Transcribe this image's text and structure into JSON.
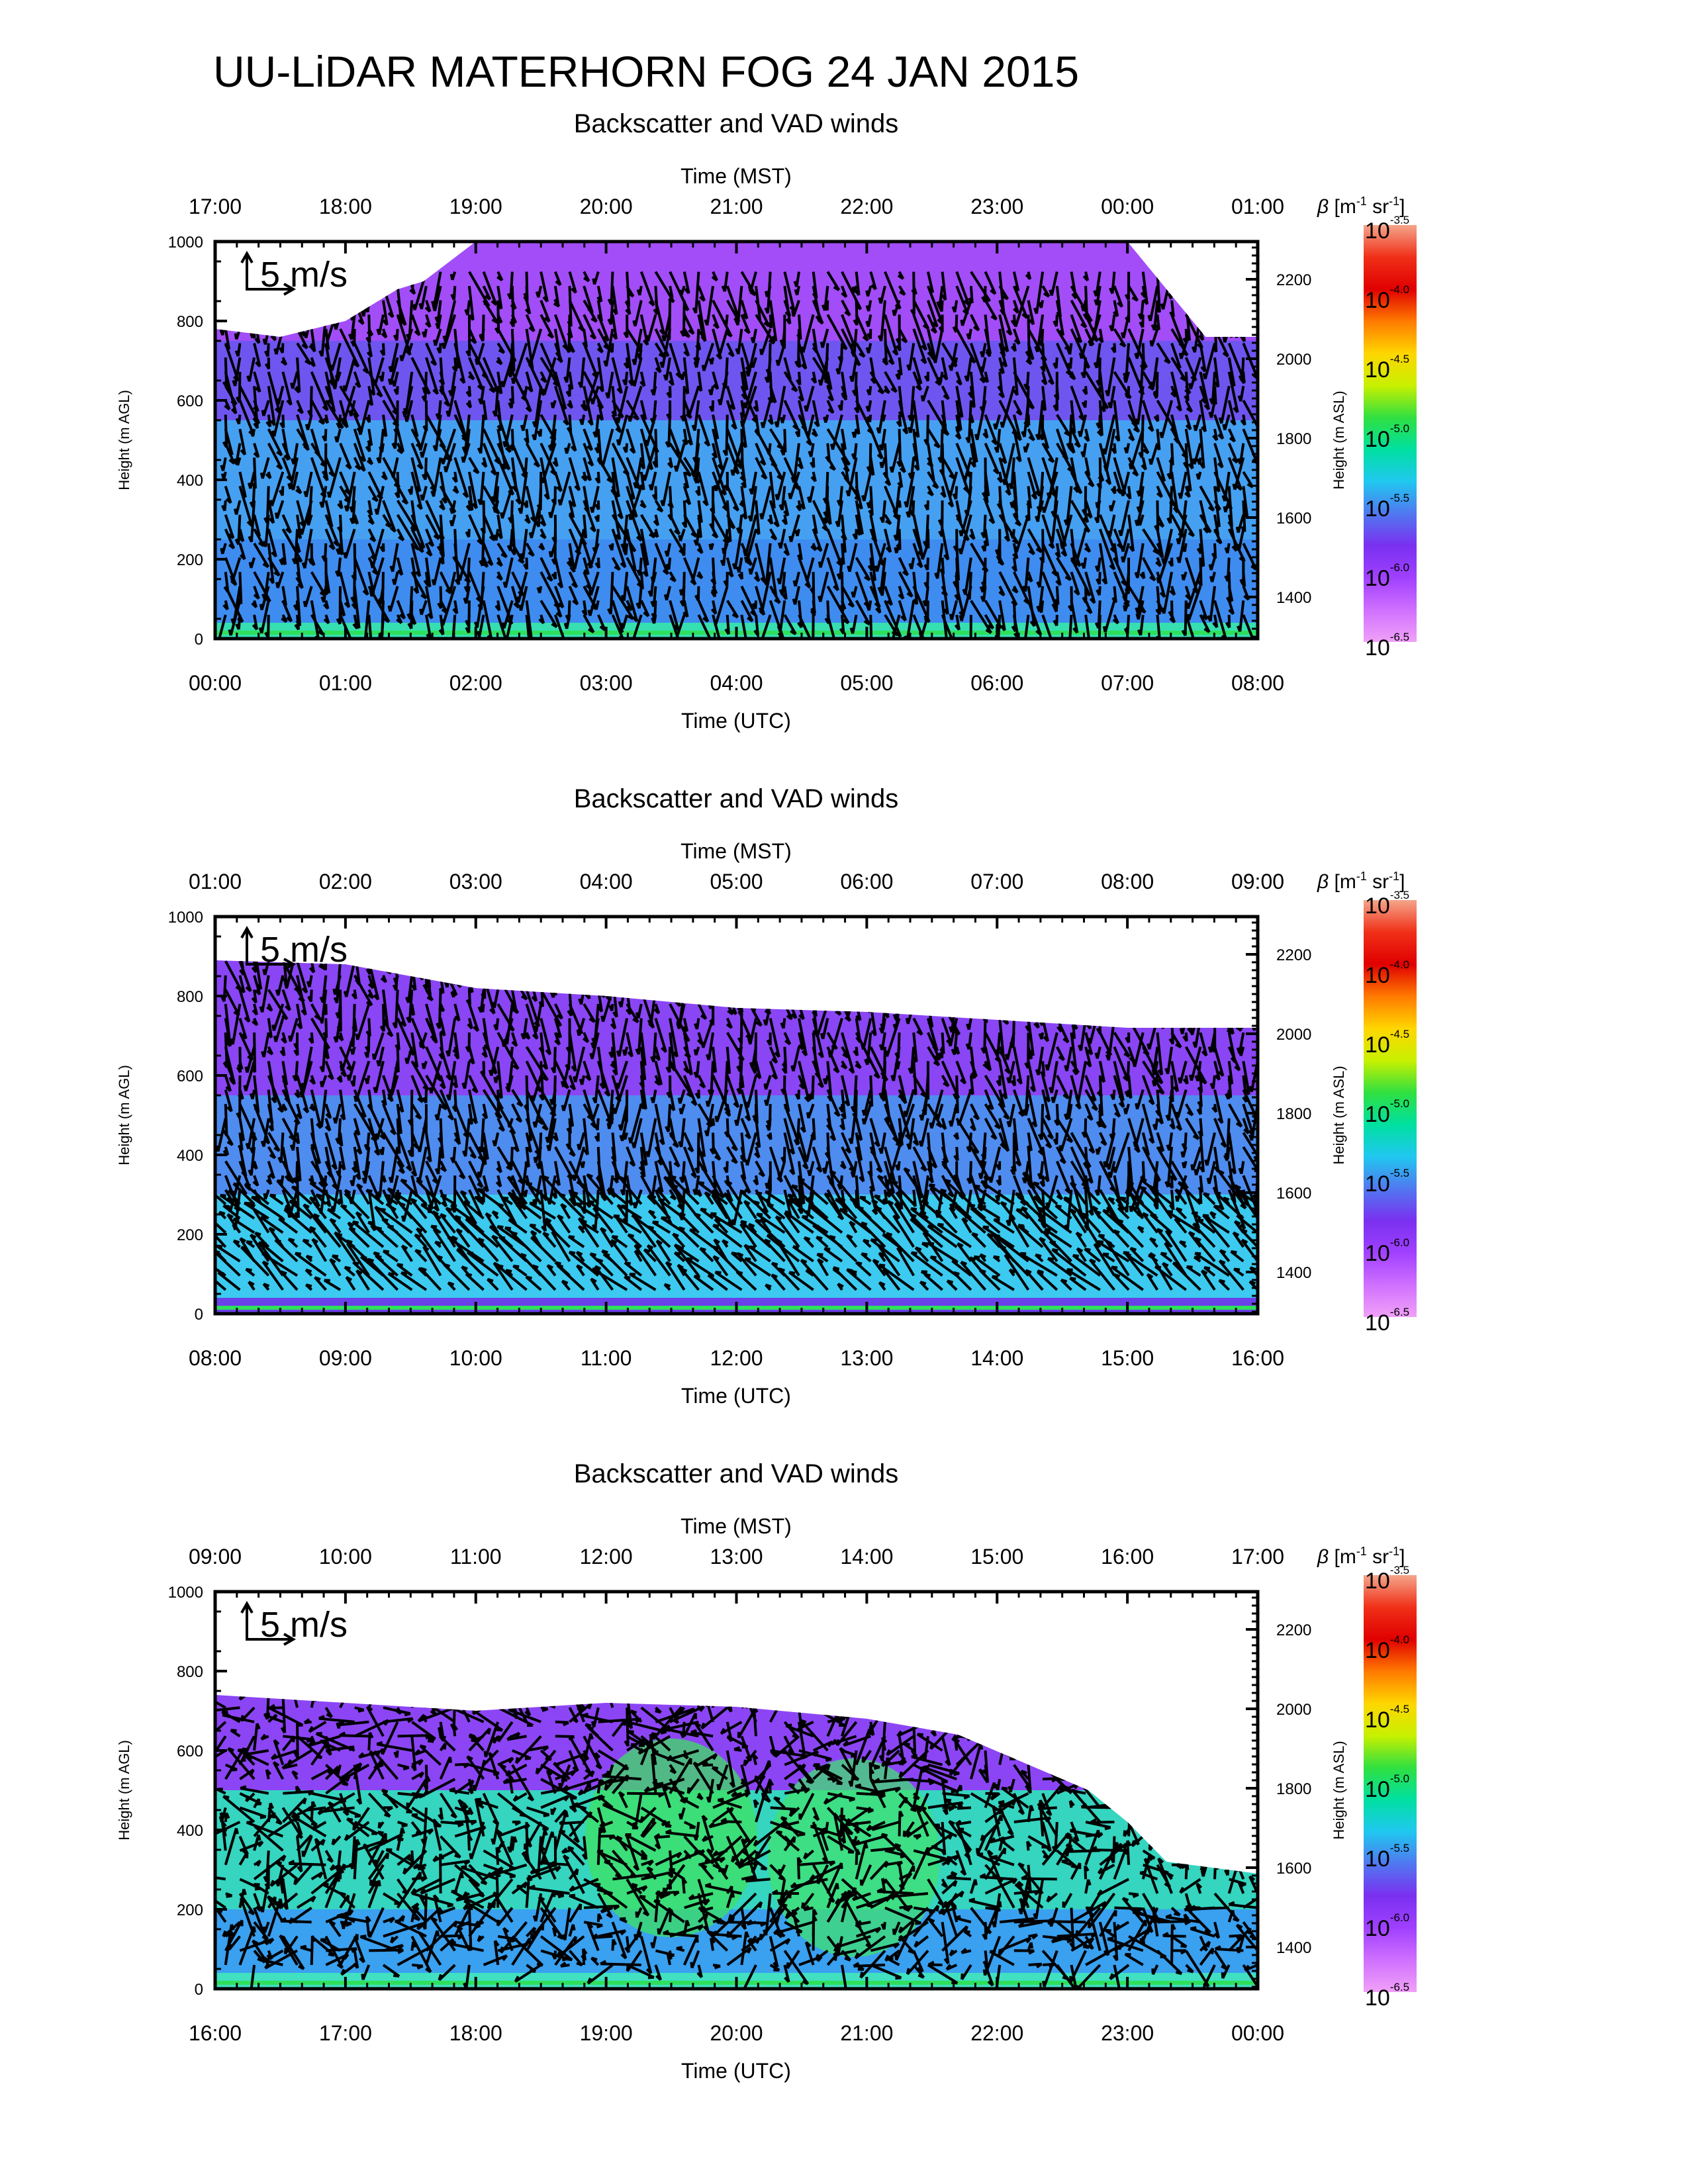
{
  "title": "UU-LiDAR MATERHORN FOG  24 JAN 2015",
  "colorbar": {
    "label": "β [m-1 sr-1]",
    "label_parts": {
      "symbol": "β",
      "open": "[m",
      "exp1": "-1",
      "mid": " sr",
      "exp2": "-1",
      "close": "]"
    },
    "tick_base": "10",
    "ticks": [
      "-3.5",
      "-4.0",
      "-4.5",
      "-5.0",
      "-5.5",
      "-6.0",
      "-6.5"
    ],
    "colors": [
      "#f4a58a",
      "#f03018",
      "#e00000",
      "#ff7a00",
      "#ffd600",
      "#c8f000",
      "#30e040",
      "#00e0a0",
      "#20c8f0",
      "#5078f0",
      "#7a30f0",
      "#a040ff",
      "#d070ff",
      "#f0a0f8"
    ]
  },
  "chart_data": [
    {
      "type": "heatmap",
      "subtitle": "Backscatter and VAD winds",
      "top_axis_title": "Time (MST)",
      "top_ticks": [
        "17:00",
        "18:00",
        "19:00",
        "20:00",
        "21:00",
        "22:00",
        "23:00",
        "00:00",
        "01:00"
      ],
      "bottom_axis_title": "Time (UTC)",
      "bottom_ticks": [
        "00:00",
        "01:00",
        "02:00",
        "03:00",
        "04:00",
        "05:00",
        "06:00",
        "07:00",
        "08:00"
      ],
      "ylabel_left": "Height (m AGL)",
      "left_ticks": [
        0,
        200,
        400,
        600,
        800,
        1000
      ],
      "ylim": [
        0,
        1000
      ],
      "ylabel_right": "Height (m ASL)",
      "right_ticks": [
        1400,
        1600,
        1800,
        2000,
        2200
      ],
      "right_ylim": [
        1295,
        2295
      ],
      "wind_scale_label": "5 m/s",
      "xlim_hours_utc": [
        0,
        8
      ],
      "data_top_profile": [
        [
          0,
          780
        ],
        [
          0.5,
          760
        ],
        [
          1.0,
          800
        ],
        [
          1.4,
          880
        ],
        [
          1.6,
          900
        ],
        [
          2.0,
          1000
        ],
        [
          3.0,
          1000
        ],
        [
          4.5,
          1000
        ],
        [
          5.5,
          1000
        ],
        [
          6.5,
          1000
        ],
        [
          7.0,
          1000
        ],
        [
          7.6,
          760
        ],
        [
          8.0,
          760
        ]
      ],
      "backscatter_layers": [
        {
          "from": 0,
          "to": 40,
          "color": "#36dfb0"
        },
        {
          "from": 40,
          "to": 250,
          "color": "#3e8cf0"
        },
        {
          "from": 250,
          "to": 550,
          "color": "#45a0f2"
        },
        {
          "from": 550,
          "to": 750,
          "color": "#6f55f0"
        },
        {
          "from": 750,
          "to": 1000,
          "color": "#a24df8"
        }
      ],
      "wind_barbs_note": "VAD wind vectors, mostly northerly/northwesterly aloft"
    },
    {
      "type": "heatmap",
      "subtitle": "Backscatter and VAD winds",
      "top_axis_title": "Time (MST)",
      "top_ticks": [
        "01:00",
        "02:00",
        "03:00",
        "04:00",
        "05:00",
        "06:00",
        "07:00",
        "08:00",
        "09:00"
      ],
      "bottom_axis_title": "Time (UTC)",
      "bottom_ticks": [
        "08:00",
        "09:00",
        "10:00",
        "11:00",
        "12:00",
        "13:00",
        "14:00",
        "15:00",
        "16:00"
      ],
      "ylabel_left": "Height (m AGL)",
      "left_ticks": [
        0,
        200,
        400,
        600,
        800,
        1000
      ],
      "ylim": [
        0,
        1000
      ],
      "ylabel_right": "Height (m ASL)",
      "right_ticks": [
        1400,
        1600,
        1800,
        2000,
        2200
      ],
      "right_ylim": [
        1295,
        2295
      ],
      "wind_scale_label": "5 m/s",
      "xlim_hours_utc": [
        8,
        16
      ],
      "data_top_profile": [
        [
          8.0,
          890
        ],
        [
          9.0,
          880
        ],
        [
          10.0,
          820
        ],
        [
          11.0,
          800
        ],
        [
          12.0,
          770
        ],
        [
          13.0,
          760
        ],
        [
          14.0,
          740
        ],
        [
          15.0,
          720
        ],
        [
          16.0,
          720
        ]
      ],
      "backscatter_layers": [
        {
          "from": 0,
          "to": 40,
          "color": "#6a40e8"
        },
        {
          "from": 40,
          "to": 300,
          "color": "#3ccaf0"
        },
        {
          "from": 300,
          "to": 550,
          "color": "#4e8cf0"
        },
        {
          "from": 550,
          "to": 900,
          "color": "#8a45f5"
        }
      ],
      "wind_barbs_note": "VAD wind vectors, strong northwesterly flow near surface"
    },
    {
      "type": "heatmap",
      "subtitle": "Backscatter and VAD winds",
      "top_axis_title": "Time (MST)",
      "top_ticks": [
        "09:00",
        "10:00",
        "11:00",
        "12:00",
        "13:00",
        "14:00",
        "15:00",
        "16:00",
        "17:00"
      ],
      "bottom_axis_title": "Time (UTC)",
      "bottom_ticks": [
        "16:00",
        "17:00",
        "18:00",
        "19:00",
        "20:00",
        "21:00",
        "22:00",
        "23:00",
        "00:00"
      ],
      "ylabel_left": "Height (m AGL)",
      "left_ticks": [
        0,
        200,
        400,
        600,
        800,
        1000
      ],
      "ylim": [
        0,
        1000
      ],
      "ylabel_right": "Height (m ASL)",
      "right_ticks": [
        1400,
        1600,
        1800,
        2000,
        2200
      ],
      "right_ylim": [
        1295,
        2295
      ],
      "wind_scale_label": "5 m/s",
      "xlim_hours_utc": [
        16,
        24
      ],
      "data_top_profile": [
        [
          16.0,
          740
        ],
        [
          17.0,
          720
        ],
        [
          18.0,
          700
        ],
        [
          19.0,
          720
        ],
        [
          20.0,
          710
        ],
        [
          21.0,
          680
        ],
        [
          21.7,
          640
        ],
        [
          22.2,
          570
        ],
        [
          22.7,
          500
        ],
        [
          23.0,
          420
        ],
        [
          23.3,
          320
        ],
        [
          24.0,
          290
        ]
      ],
      "backscatter_layers": [
        {
          "from": 0,
          "to": 40,
          "color": "#40e0c0"
        },
        {
          "from": 40,
          "to": 200,
          "color": "#3aa0f0"
        },
        {
          "from": 200,
          "to": 500,
          "color": "#35d5c0"
        },
        {
          "from": 500,
          "to": 750,
          "color": "#8c45f5"
        }
      ],
      "green_core": [
        {
          "center_hours_utc": 19.5,
          "center_height": 380,
          "color": "#3ee060"
        },
        {
          "center_hours_utc": 20.9,
          "center_height": 330,
          "color": "#40e070"
        }
      ],
      "wind_barbs_note": "VAD wind vectors, light and variable"
    }
  ]
}
